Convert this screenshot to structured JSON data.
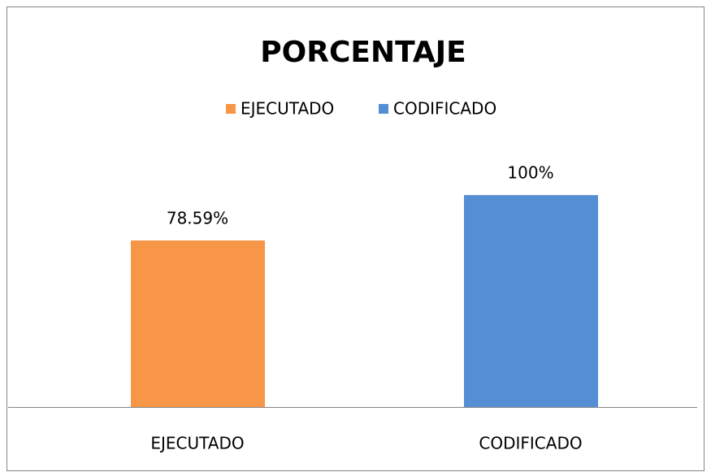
{
  "chart_data": {
    "type": "bar",
    "title": "PORCENTAJE",
    "categories": [
      "EJECUTADO",
      "CODIFICADO"
    ],
    "values": [
      78.59,
      100
    ],
    "value_labels": [
      "78.59%",
      "100%"
    ],
    "colors": [
      "#f79646",
      "#558ed5"
    ],
    "ylim": [
      0,
      120
    ],
    "legend": "top"
  }
}
